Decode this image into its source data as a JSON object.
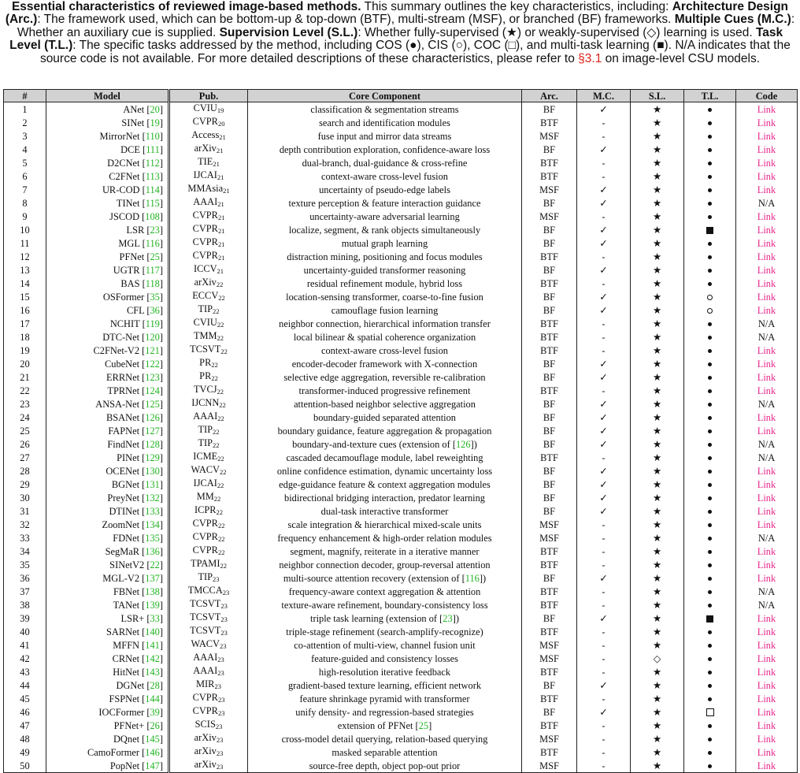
{
  "caption": {
    "lead_bold": "Essential characteristics of reviewed image-based methods.",
    "t1": " This summary outlines the key characteristics, including: ",
    "b_arc": "Architecture Design (Arc.)",
    "t2": ": The framework used, which can be bottom-up & top-down (BTF), multi-stream (MSF), or branched (BF) frameworks. ",
    "b_mc": "Multiple Cues (M.C.)",
    "t3": ": Whether an auxiliary cue is supplied. ",
    "b_sl": "Supervision Level (S.L.)",
    "t4": ": Whether fully-supervised (★) or weakly-supervised (◇) learning is used. ",
    "b_tl": "Task Level (T.L.)",
    "t5": ": The specific tasks addressed by the method, including COS (●), CIS (○), COC (□), and multi-task learning (■). N/A indicates that the source code is not available. For more detailed descriptions of these characteristics, please refer to ",
    "ref_sec": "§3.1",
    "t6": " on image-level CSU models."
  },
  "table": {
    "headers": [
      "#",
      "Model",
      "Pub.",
      "Core Component",
      "Arc.",
      "M.C.",
      "S.L.",
      "T.L.",
      "Code"
    ],
    "rows": [
      {
        "n": "1",
        "model": "ANet",
        "ref": "20",
        "venue": "CVIU",
        "yr": "19",
        "core": "classification & segmentation streams",
        "arc": "BF",
        "mc": "✓",
        "sl": "star",
        "tl": "dot",
        "code": "Link"
      },
      {
        "n": "2",
        "model": "SINet",
        "ref": "19",
        "venue": "CVPR",
        "yr": "20",
        "core": "search and identification modules",
        "arc": "BTF",
        "mc": "-",
        "sl": "star",
        "tl": "dot",
        "code": "Link"
      },
      {
        "n": "3",
        "model": "MirrorNet",
        "ref": "110",
        "venue": "Access",
        "yr": "21",
        "core": "fuse input and mirror data streams",
        "arc": "MSF",
        "mc": "-",
        "sl": "star",
        "tl": "dot",
        "code": "Link"
      },
      {
        "n": "4",
        "model": "DCE",
        "ref": "111",
        "venue": "arXiv",
        "yr": "21",
        "core": "depth contribution exploration, confidence-aware loss",
        "arc": "BF",
        "mc": "✓",
        "sl": "star",
        "tl": "dot",
        "code": "Link"
      },
      {
        "n": "5",
        "model": "D2CNet",
        "ref": "112",
        "venue": "TIE",
        "yr": "21",
        "core": "dual-branch, dual-guidance & cross-refine",
        "arc": "BTF",
        "mc": "-",
        "sl": "star",
        "tl": "dot",
        "code": "Link"
      },
      {
        "n": "6",
        "model": "C2FNet",
        "ref": "113",
        "venue": "IJCAI",
        "yr": "21",
        "core": "context-aware cross-level fusion",
        "arc": "BTF",
        "mc": "-",
        "sl": "star",
        "tl": "dot",
        "code": "Link"
      },
      {
        "n": "7",
        "model": "UR-COD",
        "ref": "114",
        "venue": "MMAsia",
        "yr": "21",
        "core": "uncertainty of pseudo-edge labels",
        "arc": "MSF",
        "mc": "✓",
        "sl": "star",
        "tl": "dot",
        "code": "Link"
      },
      {
        "n": "8",
        "model": "TINet",
        "ref": "115",
        "venue": "AAAI",
        "yr": "21",
        "core": "texture perception & feature interaction guidance",
        "arc": "BF",
        "mc": "✓",
        "sl": "star",
        "tl": "dot",
        "code": "N/A"
      },
      {
        "n": "9",
        "model": "JSCOD",
        "ref": "108",
        "venue": "CVPR",
        "yr": "21",
        "core": "uncertainty-aware adversarial learning",
        "arc": "MSF",
        "mc": "-",
        "sl": "star",
        "tl": "dot",
        "code": "Link"
      },
      {
        "n": "10",
        "model": "LSR",
        "ref": "23",
        "venue": "CVPR",
        "yr": "21",
        "core": "localize, segment, & rank objects simultaneously",
        "arc": "BF",
        "mc": "✓",
        "sl": "star",
        "tl": "sq",
        "code": "Link"
      },
      {
        "n": "11",
        "model": "MGL",
        "ref": "116",
        "venue": "CVPR",
        "yr": "21",
        "core": "mutual graph learning",
        "arc": "BF",
        "mc": "✓",
        "sl": "star",
        "tl": "dot",
        "code": "Link"
      },
      {
        "n": "12",
        "model": "PFNet",
        "ref": "25",
        "venue": "CVPR",
        "yr": "21",
        "core": "distraction mining, positioning and focus modules",
        "arc": "BTF",
        "mc": "-",
        "sl": "star",
        "tl": "dot",
        "code": "Link"
      },
      {
        "n": "13",
        "model": "UGTR",
        "ref": "117",
        "venue": "ICCV",
        "yr": "21",
        "core": "uncertainty-guided transformer reasoning",
        "arc": "BF",
        "mc": "✓",
        "sl": "star",
        "tl": "dot",
        "code": "Link"
      },
      {
        "n": "14",
        "model": "BAS",
        "ref": "118",
        "venue": "arXiv",
        "yr": "22",
        "core": "residual refinement module, hybrid loss",
        "arc": "BTF",
        "mc": "-",
        "sl": "star",
        "tl": "dot",
        "code": "Link"
      },
      {
        "n": "15",
        "model": "OSFormer",
        "ref": "35",
        "venue": "ECCV",
        "yr": "22",
        "core": "location-sensing transformer, coarse-to-fine fusion",
        "arc": "BF",
        "mc": "✓",
        "sl": "star",
        "tl": "odot",
        "code": "Link"
      },
      {
        "n": "16",
        "model": "CFL",
        "ref": "36",
        "venue": "TIP",
        "yr": "22",
        "core": "camouflage fusion learning",
        "arc": "BF",
        "mc": "✓",
        "sl": "star",
        "tl": "odot",
        "code": "Link"
      },
      {
        "n": "17",
        "model": "NCHIT",
        "ref": "119",
        "venue": "CVIU",
        "yr": "22",
        "core": "neighbor connection, hierarchical information transfer",
        "arc": "BTF",
        "mc": "-",
        "sl": "star",
        "tl": "dot",
        "code": "N/A"
      },
      {
        "n": "18",
        "model": "DTC-Net",
        "ref": "120",
        "venue": "TMM",
        "yr": "22",
        "core": "local bilinear & spatial coherence organization",
        "arc": "BTF",
        "mc": "-",
        "sl": "star",
        "tl": "dot",
        "code": "N/A"
      },
      {
        "n": "19",
        "model": "C2FNet-V2",
        "ref": "121",
        "venue": "TCSVT",
        "yr": "22",
        "core": "context-aware cross-level fusion",
        "arc": "BTF",
        "mc": "-",
        "sl": "star",
        "tl": "dot",
        "code": "Link"
      },
      {
        "n": "20",
        "model": "CubeNet",
        "ref": "122",
        "venue": "PR",
        "yr": "22",
        "core": "encoder-decoder framework with X-connection",
        "arc": "BF",
        "mc": "✓",
        "sl": "star",
        "tl": "dot",
        "code": "Link"
      },
      {
        "n": "21",
        "model": "ERRNet",
        "ref": "123",
        "venue": "PR",
        "yr": "22",
        "core": "selective edge aggregation, reversible re-calibration",
        "arc": "BF",
        "mc": "✓",
        "sl": "star",
        "tl": "dot",
        "code": "Link"
      },
      {
        "n": "22",
        "model": "TPRNet",
        "ref": "124",
        "venue": "TVCJ",
        "yr": "22",
        "core": "transformer-induced progressive refinement",
        "arc": "BTF",
        "mc": "-",
        "sl": "star",
        "tl": "dot",
        "code": "Link"
      },
      {
        "n": "23",
        "model": "ANSA-Net",
        "ref": "125",
        "venue": "IJCNN",
        "yr": "22",
        "core": "attention-based neighbor selective aggregation",
        "arc": "BF",
        "mc": "✓",
        "sl": "star",
        "tl": "dot",
        "code": "N/A"
      },
      {
        "n": "24",
        "model": "BSANet",
        "ref": "126",
        "venue": "AAAI",
        "yr": "22",
        "core": "boundary-guided separated attention",
        "arc": "BF",
        "mc": "✓",
        "sl": "star",
        "tl": "dot",
        "code": "Link"
      },
      {
        "n": "25",
        "model": "FAPNet",
        "ref": "127",
        "venue": "TIP",
        "yr": "22",
        "core": "boundary guidance, feature aggregation & propagation",
        "arc": "BF",
        "mc": "✓",
        "sl": "star",
        "tl": "dot",
        "code": "Link"
      },
      {
        "n": "26",
        "model": "FindNet",
        "ref": "128",
        "venue": "TIP",
        "yr": "22",
        "core": "boundary-and-texture cues (extension of ",
        "core_ref": "126",
        "core_tail": ")",
        "arc": "BF",
        "mc": "✓",
        "sl": "star",
        "tl": "dot",
        "code": "N/A"
      },
      {
        "n": "27",
        "model": "PINet",
        "ref": "129",
        "venue": "ICME",
        "yr": "22",
        "core": "cascaded decamouflage module, label reweighting",
        "arc": "BTF",
        "mc": "-",
        "sl": "star",
        "tl": "dot",
        "code": "N/A"
      },
      {
        "n": "28",
        "model": "OCENet",
        "ref": "130",
        "venue": "WACV",
        "yr": "22",
        "core": "online confidence estimation, dynamic uncertainty loss",
        "arc": "BF",
        "mc": "✓",
        "sl": "star",
        "tl": "dot",
        "code": "Link"
      },
      {
        "n": "29",
        "model": "BGNet",
        "ref": "131",
        "venue": "IJCAI",
        "yr": "22",
        "core": "edge-guidance feature & context aggregation modules",
        "arc": "BF",
        "mc": "✓",
        "sl": "star",
        "tl": "dot",
        "code": "Link"
      },
      {
        "n": "30",
        "model": "PreyNet",
        "ref": "132",
        "venue": "MM",
        "yr": "22",
        "core": "bidirectional bridging interaction, predator learning",
        "arc": "BF",
        "mc": "✓",
        "sl": "star",
        "tl": "dot",
        "code": "Link"
      },
      {
        "n": "31",
        "model": "DTINet",
        "ref": "133",
        "venue": "ICPR",
        "yr": "22",
        "core": "dual-task interactive transformer",
        "arc": "BF",
        "mc": "✓",
        "sl": "star",
        "tl": "dot",
        "code": "Link"
      },
      {
        "n": "32",
        "model": "ZoomNet",
        "ref": "134",
        "venue": "CVPR",
        "yr": "22",
        "core": "scale integration & hierarchical mixed-scale units",
        "arc": "MSF",
        "mc": "-",
        "sl": "star",
        "tl": "dot",
        "code": "Link"
      },
      {
        "n": "33",
        "model": "FDNet",
        "ref": "135",
        "venue": "CVPR",
        "yr": "22",
        "core": "frequency enhancement & high-order relation modules",
        "arc": "MSF",
        "mc": "-",
        "sl": "star",
        "tl": "dot",
        "code": "N/A"
      },
      {
        "n": "34",
        "model": "SegMaR",
        "ref": "136",
        "venue": "CVPR",
        "yr": "22",
        "core": "segment, magnify, reiterate in a iterative manner",
        "arc": "BTF",
        "mc": "-",
        "sl": "star",
        "tl": "dot",
        "code": "Link"
      },
      {
        "n": "35",
        "model": "SINetV2",
        "ref": "22",
        "venue": "TPAMI",
        "yr": "22",
        "core": "neighbor connection decoder, group-reversal attention",
        "arc": "BTF",
        "mc": "-",
        "sl": "star",
        "tl": "dot",
        "code": "Link"
      },
      {
        "n": "36",
        "model": "MGL-V2",
        "ref": "137",
        "venue": "TIP",
        "yr": "23",
        "core": "multi-source attention recovery (extension of ",
        "core_ref": "116",
        "core_tail": ")",
        "arc": "BF",
        "mc": "✓",
        "sl": "star",
        "tl": "dot",
        "code": "Link"
      },
      {
        "n": "37",
        "model": "FBNet",
        "ref": "138",
        "venue": "TMCCA",
        "yr": "23",
        "core": "frequency-aware context aggregation & attention",
        "arc": "BTF",
        "mc": "-",
        "sl": "star",
        "tl": "dot",
        "code": "N/A"
      },
      {
        "n": "38",
        "model": "TANet",
        "ref": "139",
        "venue": "TCSVT",
        "yr": "23",
        "core": "texture-aware refinement, boundary-consistency loss",
        "arc": "BTF",
        "mc": "-",
        "sl": "star",
        "tl": "dot",
        "code": "N/A"
      },
      {
        "n": "39",
        "model": "LSR+",
        "ref": "33",
        "venue": "TCSVT",
        "yr": "23",
        "core": "triple task learning (extension of ",
        "core_ref": "23",
        "core_tail": ")",
        "arc": "BF",
        "mc": "✓",
        "sl": "star",
        "tl": "sq",
        "code": "Link"
      },
      {
        "n": "40",
        "model": "SARNet",
        "ref": "140",
        "venue": "TCSVT",
        "yr": "23",
        "core": "triple-stage refinement (search-amplify-recognize)",
        "arc": "BTF",
        "mc": "-",
        "sl": "star",
        "tl": "dot",
        "code": "Link"
      },
      {
        "n": "41",
        "model": "MFFN",
        "ref": "141",
        "venue": "WACV",
        "yr": "23",
        "core": "co-attention of multi-view, channel fusion unit",
        "arc": "MSF",
        "mc": "-",
        "sl": "star",
        "tl": "dot",
        "code": "Link"
      },
      {
        "n": "42",
        "model": "CRNet",
        "ref": "142",
        "venue": "AAAI",
        "yr": "23",
        "core": "feature-guided and consistency losses",
        "arc": "MSF",
        "mc": "-",
        "sl": "diamond",
        "tl": "dot",
        "code": "Link"
      },
      {
        "n": "43",
        "model": "HitNet",
        "ref": "143",
        "venue": "AAAI",
        "yr": "23",
        "core": "high-resolution iterative feedback",
        "arc": "BTF",
        "mc": "-",
        "sl": "star",
        "tl": "dot",
        "code": "Link"
      },
      {
        "n": "44",
        "model": "DGNet",
        "ref": "28",
        "venue": "MIR",
        "yr": "23",
        "core": "gradient-based texture learning, efficient network",
        "arc": "BF",
        "mc": "✓",
        "sl": "star",
        "tl": "dot",
        "code": "Link"
      },
      {
        "n": "45",
        "model": "FSPNet",
        "ref": "144",
        "venue": "CVPR",
        "yr": "23",
        "core": "feature shrinkage pyramid with transformer",
        "arc": "BTF",
        "mc": "-",
        "sl": "star",
        "tl": "dot",
        "code": "Link"
      },
      {
        "n": "46",
        "model": "IOCFormer",
        "ref": "39",
        "venue": "CVPR",
        "yr": "23",
        "core": "unify density- and regression-based strategies",
        "arc": "BF",
        "mc": "✓",
        "sl": "star",
        "tl": "osq",
        "code": "Link"
      },
      {
        "n": "47",
        "model": "PFNet+",
        "ref": "26",
        "venue": "SCIS",
        "yr": "23",
        "core": "extension of PFNet ",
        "core_ref": "25",
        "core_tail": "",
        "arc": "BTF",
        "mc": "-",
        "sl": "star",
        "tl": "dot",
        "code": "Link"
      },
      {
        "n": "48",
        "model": "DQnet",
        "ref": "145",
        "venue": "arXiv",
        "yr": "23",
        "core": "cross-model detail querying, relation-based querying",
        "arc": "MSF",
        "mc": "-",
        "sl": "star",
        "tl": "dot",
        "code": "Link"
      },
      {
        "n": "49",
        "model": "CamoFormer",
        "ref": "146",
        "venue": "arXiv",
        "yr": "23",
        "core": "masked separable attention",
        "arc": "BTF",
        "mc": "-",
        "sl": "star",
        "tl": "dot",
        "code": "Link"
      },
      {
        "n": "50",
        "model": "PopNet",
        "ref": "147",
        "venue": "arXiv",
        "yr": "23",
        "core": "source-free depth, object pop-out prior",
        "arc": "MSF",
        "mc": "-",
        "sl": "star",
        "tl": "dot",
        "code": "Link"
      }
    ]
  }
}
